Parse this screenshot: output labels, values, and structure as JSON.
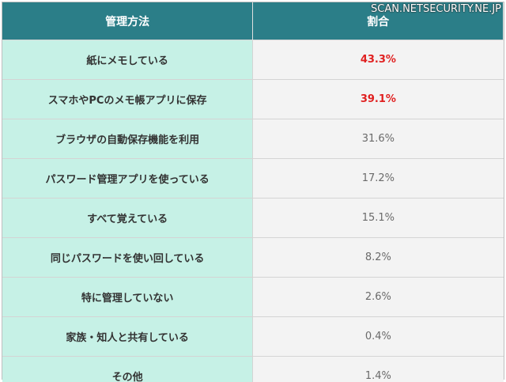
{
  "watermark": "SCAN.NETSECURITY.NE.JP",
  "table": {
    "header": [
      "管理方法",
      "割合"
    ],
    "rows": [
      [
        "紙にメモしている",
        "43.3%"
      ],
      [
        "スマホやPCのメモ帳アプリに保存",
        "39.1%"
      ],
      [
        "ブラウザの自動保存機能を利用",
        "31.6%"
      ],
      [
        "パスワード管理アプリを使っている",
        "17.2%"
      ],
      [
        "すべて覚えている",
        "15.1%"
      ],
      [
        "同じパスワードを使い回している",
        "8.2%"
      ],
      [
        "特に管理していない",
        "2.6%"
      ],
      [
        "家族・知人と共有している",
        "0.4%"
      ],
      [
        "その他",
        "1.4%"
      ]
    ]
  }
}
